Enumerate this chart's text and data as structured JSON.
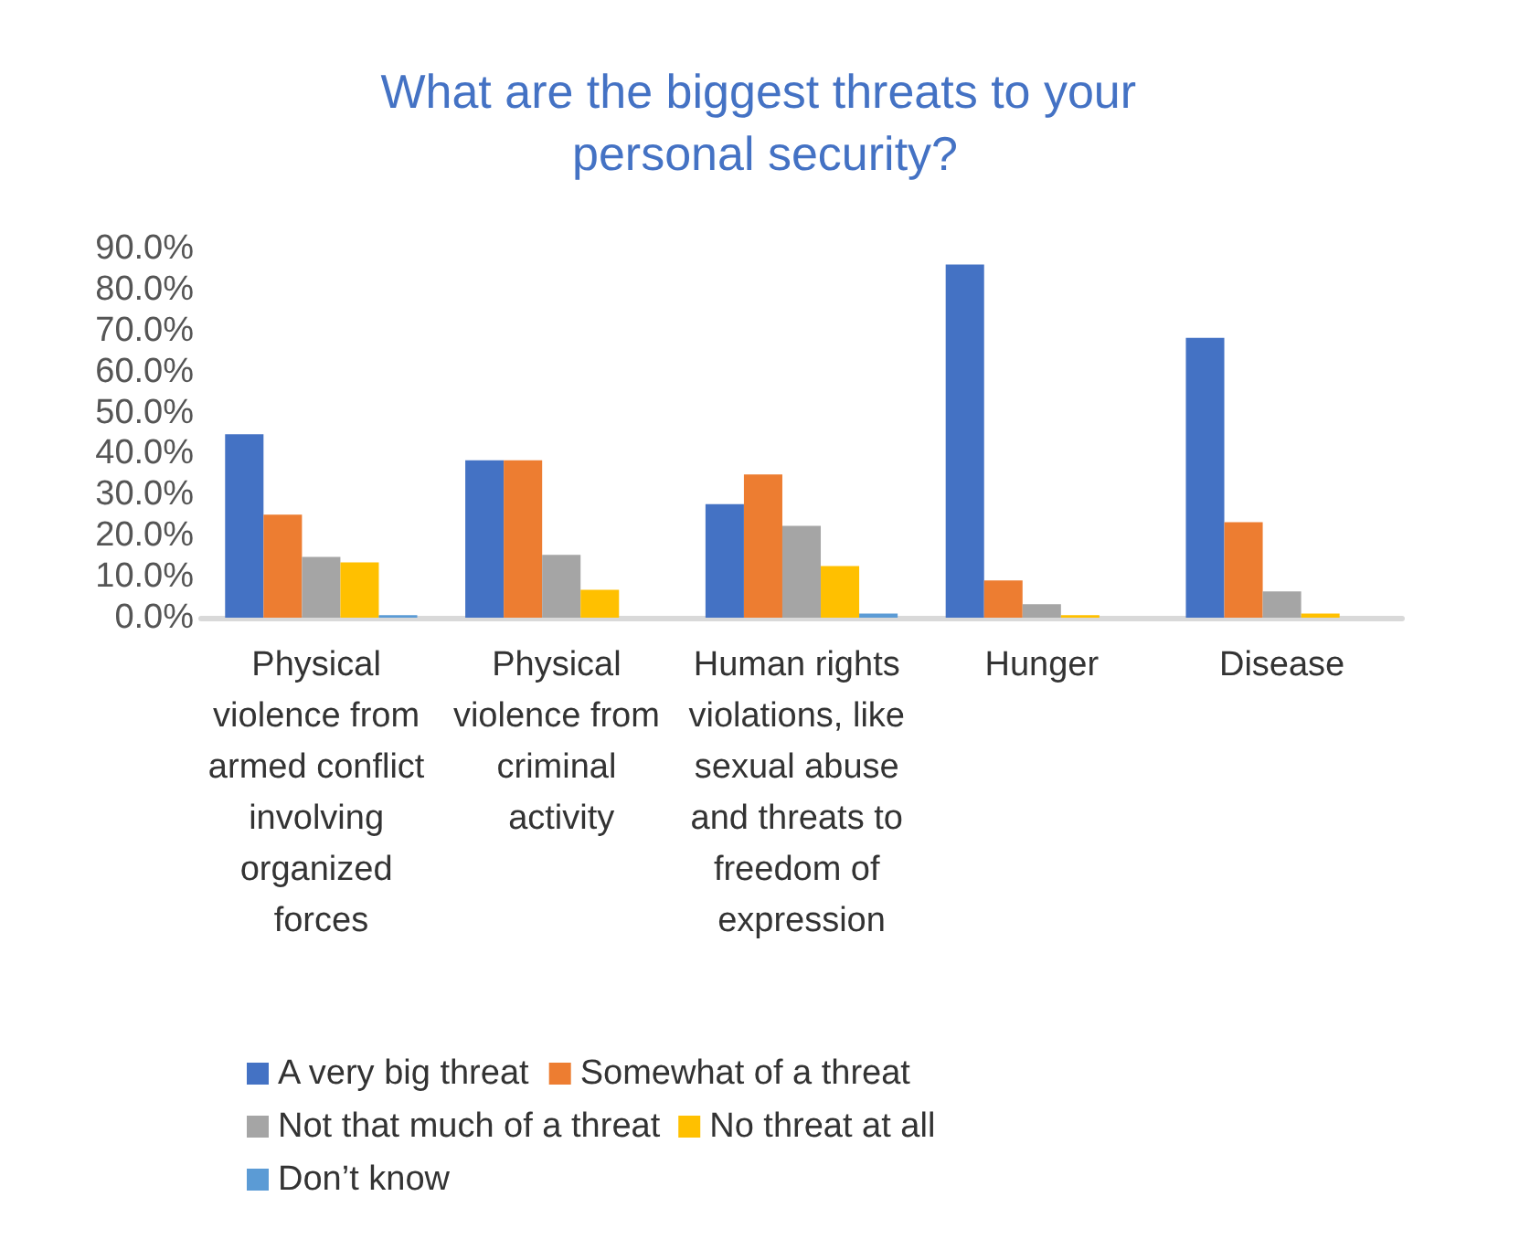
{
  "chart_data": {
    "type": "bar",
    "title": "What are the biggest threats to your personal security?",
    "categories": [
      "Physical violence from armed conflict involving organized forces",
      "Physical violence from criminal activity",
      "Human rights violations, like sexual abuse and threats to freedom of expression",
      "Hunger",
      "Disease"
    ],
    "series": [
      {
        "name": "A very big threat",
        "color": "#4472c4",
        "values": [
          44.7,
          38.4,
          27.7,
          86.1,
          68.2
        ]
      },
      {
        "name": "Somewhat of a threat",
        "color": "#ed7d31",
        "values": [
          25.1,
          38.4,
          34.9,
          9.1,
          23.3
        ]
      },
      {
        "name": "Not that much of a threat",
        "color": "#a5a5a5",
        "values": [
          14.8,
          15.3,
          22.4,
          3.3,
          6.4
        ]
      },
      {
        "name": "No threat at all",
        "color": "#ffc000",
        "values": [
          13.5,
          6.8,
          12.6,
          0.6,
          1.0
        ]
      },
      {
        "name": "Don’t know",
        "color": "#5b9bd5",
        "values": [
          0.6,
          0,
          1.0,
          0,
          0
        ]
      }
    ],
    "ylim": [
      0,
      90
    ],
    "yticks": [
      {
        "value": 0,
        "label": "0.0%"
      },
      {
        "value": 10,
        "label": "10.0%"
      },
      {
        "value": 20,
        "label": "20.0%"
      },
      {
        "value": 30,
        "label": "30.0%"
      },
      {
        "value": 40,
        "label": "40.0%"
      },
      {
        "value": 50,
        "label": "50.0%"
      },
      {
        "value": 60,
        "label": "60.0%"
      },
      {
        "value": 70,
        "label": "70.0%"
      },
      {
        "value": 80,
        "label": "80.0%"
      },
      {
        "value": 90,
        "label": "90.0%"
      }
    ],
    "grid": false,
    "legend": "bottom"
  }
}
